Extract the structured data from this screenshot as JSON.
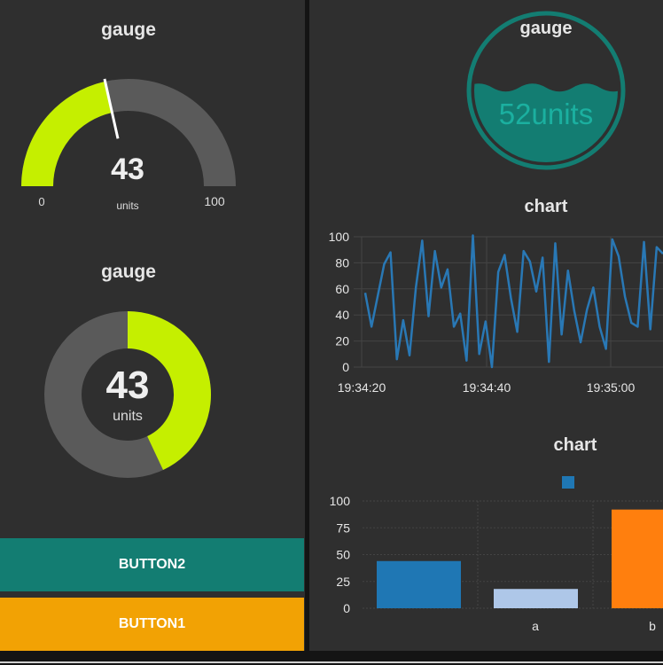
{
  "colors": {
    "panel_bg": "#2f2f2f",
    "gauge_fill": "#c5ef00",
    "gauge_track": "#5a5a5a",
    "accent_teal": "#137d72",
    "accent_orange": "#f2a204",
    "line_blue": "#2978b5"
  },
  "gauge1": {
    "title": "gauge",
    "value": "43",
    "units": "units",
    "min": "0",
    "max": "100",
    "fraction": 0.43
  },
  "gauge2": {
    "title": "gauge",
    "value": "43",
    "units": "units",
    "fraction": 0.43
  },
  "level_gauge": {
    "title": "gauge",
    "value_text": "52units",
    "level_percent": 52
  },
  "buttons": {
    "button2_label": "BUTTON2",
    "button1_label": "BUTTON1"
  },
  "line_chart": {
    "title": "chart",
    "chart_data": {
      "type": "line",
      "x_tick_labels": [
        "19:34:20",
        "19:34:40",
        "19:35:00"
      ],
      "y_tick_labels": [
        "100",
        "80",
        "60",
        "40",
        "20",
        "0"
      ],
      "ylim": [
        0,
        100
      ],
      "series": [
        {
          "values": [
            57,
            31,
            55,
            79,
            88,
            6,
            36,
            9,
            61,
            97,
            39,
            89,
            61,
            75,
            31,
            41,
            5,
            101,
            10,
            35,
            0,
            73,
            86,
            53,
            27,
            89,
            81,
            58,
            84,
            4,
            95,
            25,
            74,
            43,
            19,
            44,
            61,
            31,
            14,
            98,
            85,
            54,
            34,
            31,
            96,
            29,
            92,
            87
          ]
        }
      ]
    }
  },
  "bar_chart": {
    "title": "chart",
    "chart_data": {
      "type": "bar",
      "categories": [
        "",
        "a",
        "b"
      ],
      "values": [
        44,
        18,
        92
      ],
      "bar_colors": [
        "#1f77b4",
        "#aec7e8",
        "#ff7f0e"
      ],
      "legend_color": "#1f77b4",
      "y_tick_labels": [
        "100",
        "75",
        "50",
        "25",
        "0"
      ],
      "ylim": [
        0,
        100
      ]
    }
  }
}
